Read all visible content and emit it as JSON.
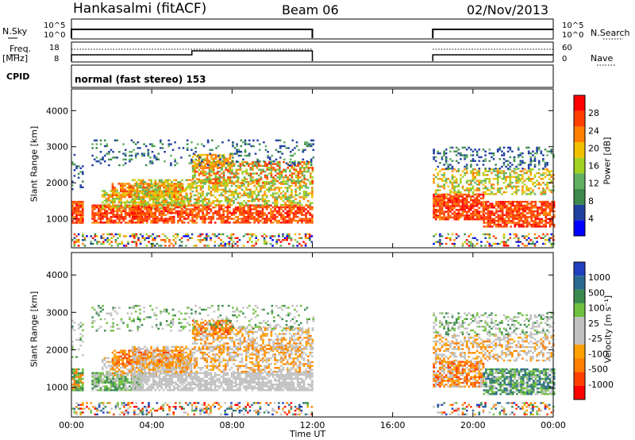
{
  "header": {
    "station": "Hankasalmi (fitACF)",
    "beam": "Beam 06",
    "date": "02/Nov/2013"
  },
  "panels": {
    "nsky_label": "N.Sky",
    "nsky_left_ticks": [
      "10^5",
      "10^0"
    ],
    "nsearch_label": "N.Search",
    "nsearch_right_ticks": [
      "10^5",
      "10^0"
    ],
    "freq_label": "Freq.",
    "freq_unit": "[MHz]",
    "freq_ticks": [
      "18",
      "8"
    ],
    "nave_label": "Nave",
    "nave_ticks": [
      "60",
      "0"
    ],
    "cpid_label": "CPID",
    "cpid_text": "normal (fast stereo) 153"
  },
  "colors": {
    "power_scale": [
      "#0000ff",
      "#2040a0",
      "#3c8a4c",
      "#60b060",
      "#a0d020",
      "#f0c000",
      "#ff8000",
      "#ff4000",
      "#ff0000"
    ],
    "velocity_scale": [
      "#ff0000",
      "#ff4000",
      "#ff8000",
      "#ffa000",
      "#c0c0c0",
      "#c0c0c0",
      "#70c040",
      "#3a8a50",
      "#2a6a90",
      "#2040c0"
    ]
  },
  "chart_data": [
    {
      "type": "heatmap",
      "title": "",
      "xlabel": "Time UT",
      "ylabel": "Slant Range [km]",
      "x_ticks": [
        "00:00",
        "04:00",
        "08:00",
        "12:00",
        "16:00",
        "20:00",
        "00:00"
      ],
      "y_ticks": [
        "1000",
        "2000",
        "3000",
        "4000"
      ],
      "ylim": [
        200,
        4600
      ],
      "xlim_hours": [
        0,
        24
      ],
      "data_gap_hours": [
        12,
        18
      ],
      "colorbar": {
        "label": "Power [dB]",
        "ticks": [
          "4",
          "8",
          "12",
          "16",
          "20",
          "24",
          "28"
        ],
        "range": [
          0,
          32
        ]
      }
    },
    {
      "type": "heatmap",
      "title": "",
      "xlabel": "Time UT",
      "ylabel": "Slant Range [km]",
      "x_ticks": [
        "00:00",
        "04:00",
        "08:00",
        "12:00",
        "16:00",
        "20:00",
        "00:00"
      ],
      "y_ticks": [
        "1000",
        "2000",
        "3000",
        "4000"
      ],
      "ylim": [
        200,
        4600
      ],
      "xlim_hours": [
        0,
        24
      ],
      "data_gap_hours": [
        12,
        18
      ],
      "colorbar": {
        "label": "Velocity [m s⁻¹]",
        "ticks": [
          "1000",
          "500",
          "100",
          "25",
          "-25",
          "-100",
          "-500",
          "-1000"
        ]
      }
    }
  ]
}
